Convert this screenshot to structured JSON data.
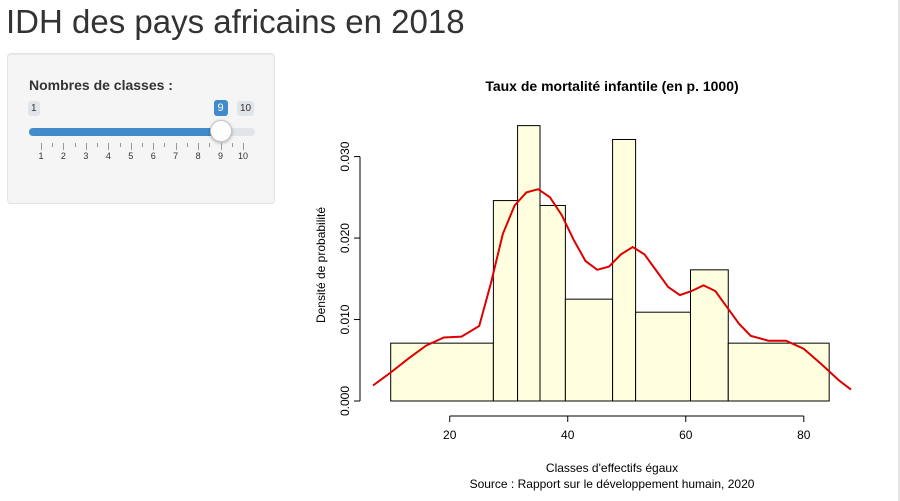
{
  "page": {
    "title": "IDH des pays africains en 2018"
  },
  "slider": {
    "label": "Nombres de classes :",
    "min": 1,
    "max": 10,
    "value": 9,
    "min_label": "1",
    "max_label": "10",
    "value_label": "9",
    "tick_labels": [
      "1",
      "2",
      "3",
      "4",
      "5",
      "6",
      "7",
      "8",
      "9",
      "10"
    ],
    "fill_color": "#428bca"
  },
  "chart_data": {
    "type": "bar",
    "title": "Taux de mortalité infantile (en p. 1000)",
    "xlabel": "Classes d'effectifs égaux",
    "caption": "Source : Rapport sur le développement humain, 2020",
    "ylabel": "Densité de probabilité",
    "xlim": [
      7,
      88
    ],
    "ylim": [
      0,
      0.034
    ],
    "x_ticks": [
      20,
      40,
      60,
      80
    ],
    "y_ticks": [
      0.0,
      0.01,
      0.02,
      0.03
    ],
    "x_tick_labels": [
      "20",
      "40",
      "60",
      "80"
    ],
    "y_tick_labels": [
      "0.000",
      "0.010",
      "0.020",
      "0.030"
    ],
    "bar_color": "#ffffe0",
    "density_color": "#dd0000",
    "bins": [
      {
        "x0": 10.0,
        "x1": 27.4,
        "density": 0.0071
      },
      {
        "x0": 27.4,
        "x1": 31.5,
        "density": 0.0246
      },
      {
        "x0": 31.5,
        "x1": 35.3,
        "density": 0.0338
      },
      {
        "x0": 35.3,
        "x1": 39.6,
        "density": 0.024
      },
      {
        "x0": 39.6,
        "x1": 47.6,
        "density": 0.0125
      },
      {
        "x0": 47.6,
        "x1": 51.5,
        "density": 0.0321
      },
      {
        "x0": 51.5,
        "x1": 60.8,
        "density": 0.0109
      },
      {
        "x0": 60.8,
        "x1": 67.2,
        "density": 0.0161
      },
      {
        "x0": 67.2,
        "x1": 84.3,
        "density": 0.0071
      }
    ],
    "density_curve": {
      "x": [
        7,
        10,
        13,
        16,
        19,
        22,
        25,
        27,
        29,
        31,
        33,
        35,
        37,
        39,
        41,
        43,
        45,
        47,
        49,
        51,
        53,
        55,
        57,
        59,
        61,
        63,
        65,
        67,
        69,
        71,
        74,
        77,
        80,
        83,
        86,
        88
      ],
      "y": [
        0.0019,
        0.0035,
        0.0052,
        0.0068,
        0.0078,
        0.0079,
        0.0092,
        0.0145,
        0.0205,
        0.024,
        0.0256,
        0.026,
        0.025,
        0.0228,
        0.0198,
        0.0172,
        0.0161,
        0.0165,
        0.018,
        0.0189,
        0.018,
        0.016,
        0.014,
        0.013,
        0.0135,
        0.0142,
        0.0135,
        0.0115,
        0.0095,
        0.008,
        0.0074,
        0.0074,
        0.0064,
        0.0045,
        0.0025,
        0.0014
      ]
    }
  }
}
